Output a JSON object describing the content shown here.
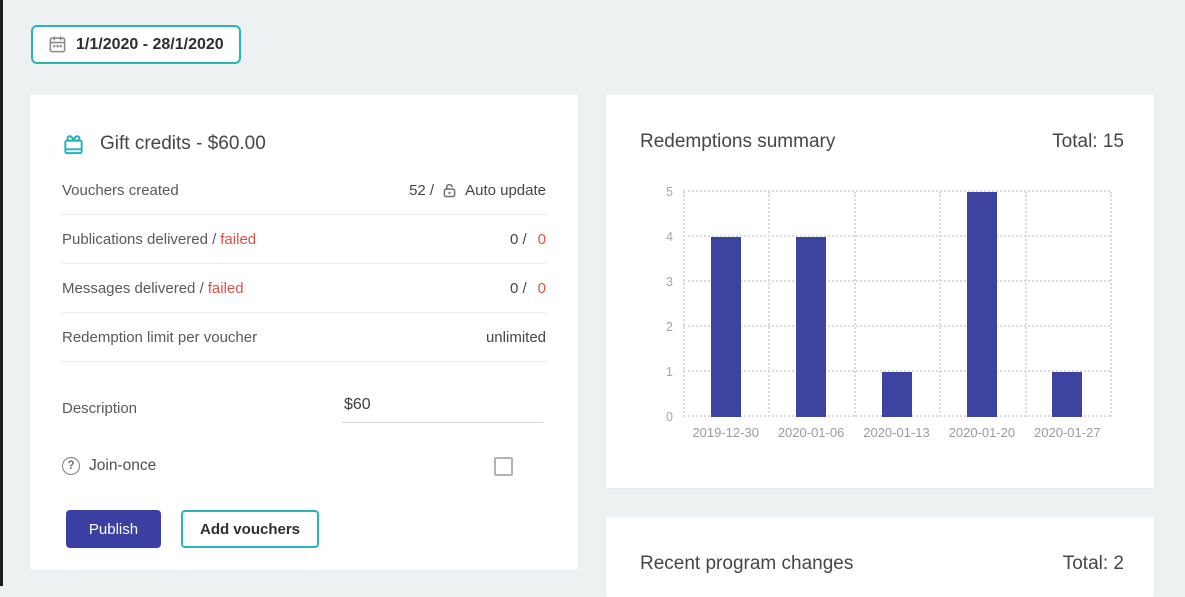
{
  "colors": {
    "accent_teal": "#27b6bc",
    "accent_indigo": "#3c3fa2",
    "bar_indigo": "#3d43a0",
    "alert_red": "#e04f49",
    "page_bg": "#edf1f2"
  },
  "date_picker": {
    "icon": "calendar-icon",
    "value": "1/1/2020 - 28/1/2020"
  },
  "gift_card": {
    "icon": "gift-icon",
    "title": "Gift credits - $60.00",
    "stats": [
      {
        "label": "Vouchers created",
        "value": "52 /",
        "icon": "unlock-icon",
        "value_extra": "Auto update"
      },
      {
        "label": "Publications delivered /",
        "label_red": "failed",
        "value": "0 /",
        "value_red": "0"
      },
      {
        "label": "Messages delivered /",
        "label_red": "failed",
        "value": "0 /",
        "value_red": "0"
      },
      {
        "label": "Redemption limit per voucher",
        "value": "unlimited"
      }
    ],
    "description": {
      "label": "Description",
      "value": "$60"
    },
    "join_once": {
      "icon": "question-icon",
      "label": "Join-once",
      "checked": false
    },
    "buttons": {
      "publish": "Publish",
      "add_vouchers": "Add vouchers"
    }
  },
  "redemptions": {
    "title": "Redemptions summary",
    "total_label": "Total: 15"
  },
  "recent_changes": {
    "title": "Recent program changes",
    "total_label": "Total: 2"
  },
  "chart_data": {
    "type": "bar",
    "categories": [
      "2019-12-30",
      "2020-01-06",
      "2020-01-13",
      "2020-01-20",
      "2020-01-27"
    ],
    "values": [
      4,
      4,
      1,
      5,
      1
    ],
    "total": 15,
    "title": "Redemptions summary",
    "xlabel": "",
    "ylabel": "",
    "ylim": [
      0,
      5
    ],
    "yticks": [
      0,
      1,
      2,
      3,
      4,
      5
    ],
    "grid": "dotted",
    "legend": "none",
    "bar_color": "#3d43a0"
  }
}
